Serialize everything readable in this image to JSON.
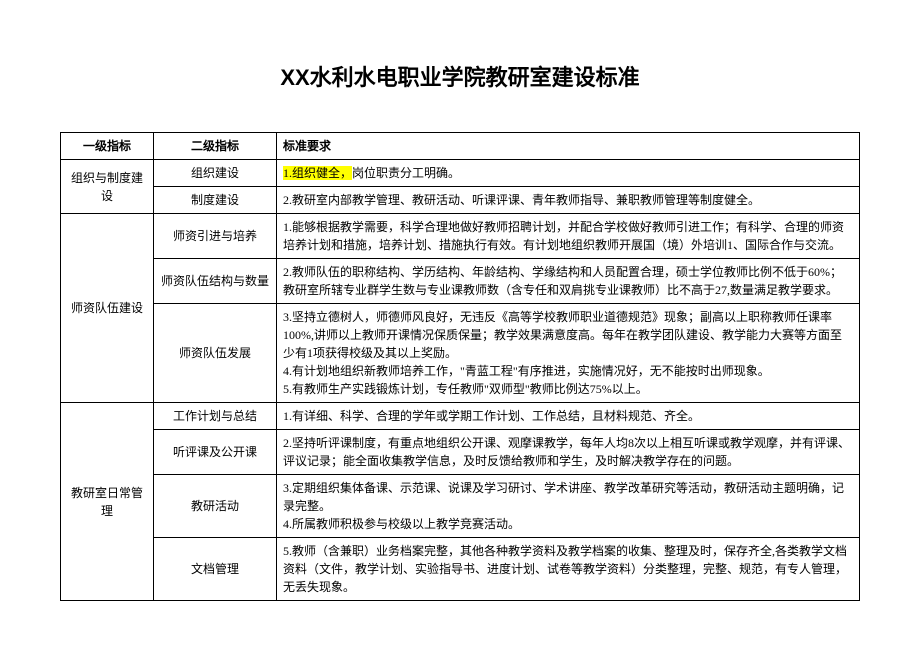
{
  "title": "XX水利水电职业学院教研室建设标准",
  "headers": {
    "col1": "一级指标",
    "col2": "二级指标",
    "col3": "标准要求"
  },
  "sections": [
    {
      "level1": "组织与制度建设",
      "rows": [
        {
          "level2": "组织建设",
          "req_hl": "1.组织健全，",
          "req_rest": "岗位职责分工明确。"
        },
        {
          "level2": "制度建设",
          "req": "2.教研室内部教学管理、教研活动、听课评课、青年教师指导、兼职教师管理等制度健全。"
        }
      ]
    },
    {
      "level1": "师资队伍建设",
      "rows": [
        {
          "level2": "师资引进与培养",
          "req": "1.能够根据教学需要，科学合理地做好教师招聘计划，并配合学校做好教师引进工作；有科学、合理的师资培养计划和措施，培养计划、措施执行有效。有计划地组织教师开展国（境）外培训1、国际合作与交流。"
        },
        {
          "level2": "师资队伍结构与数量",
          "req": "2.教师队伍的职称结构、学历结构、年龄结构、学缘结构和人员配置合理，硕士学位教师比例不低于60%；教研室所辖专业群学生数与专业课教师数（含专任和双肩挑专业课教师）比不高于27,数量满足教学要求。"
        },
        {
          "level2": "师资队伍发展",
          "req": "3.坚持立德树人，师德师风良好，无违反《高等学校教师职业道德规范》现象；副高以上职称教师任课率100%,讲师以上教师开课情况保质保量；教学效果满意度高。每年在教学团队建设、教学能力大赛等方面至少有1项获得校级及其以上奖励。\n4.有计划地组织新教师培养工作，\"青蓝工程\"有序推进，实施情况好，无不能按时出师现象。\n5.有教师生产实践锻炼计划，专任教师\"双师型\"教师比例达75%以上。"
        }
      ]
    },
    {
      "level1": "教研室日常管理",
      "rows": [
        {
          "level2": "工作计划与总结",
          "req": "1.有详细、科学、合理的学年或学期工作计划、工作总结，且材料规范、齐全。"
        },
        {
          "level2": "听评课及公开课",
          "req": "2.坚持听评课制度，有重点地组织公开课、观摩课教学，每年人均8次以上相互听课或教学观摩，并有评课、评议记录；能全面收集教学信息，及时反馈给教师和学生，及时解决教学存在的问题。"
        },
        {
          "level2": "教研活动",
          "req": "3.定期组织集体备课、示范课、说课及学习研讨、学术讲座、教学改革研究等活动，教研活动主题明确，记录完整。\n4.所属教师积极参与校级以上教学竞赛活动。"
        },
        {
          "level2": "文档管理",
          "req": "5.教师（含兼职）业务档案完整，其他各种教学资料及教学档案的收集、整理及时，保存齐全,各类教学文档资料（文件，教学计划、实验指导书、进度计划、试卷等教学资料）分类整理，完整、规范，有专人管理，无丢失现象。"
        }
      ]
    }
  ]
}
